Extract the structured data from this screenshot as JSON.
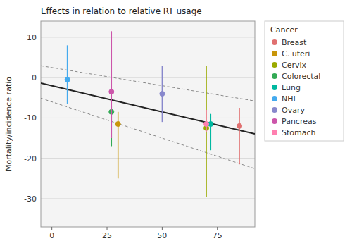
{
  "chart_data": {
    "type": "scatter",
    "title": "Effects in relation to relative RT usage",
    "y_label": "Mortality/incidence ratio",
    "legend_title": "Cancer",
    "xlim": [
      -5,
      92
    ],
    "ylim": [
      -37,
      14
    ],
    "xticks": [
      0,
      25,
      50,
      75
    ],
    "yticks": [
      -30,
      -20,
      -10,
      0,
      10
    ],
    "grid": true,
    "legend": "right",
    "series": [
      {
        "type": "line",
        "color": "#888888",
        "line_style": "dashed",
        "x": [
          -5,
          92
        ],
        "values": [
          2.95,
          -5.78
        ]
      },
      {
        "type": "line",
        "color": "#888888",
        "line_style": "dashed",
        "x": [
          -5,
          92
        ],
        "values": [
          -5.1,
          -22.56
        ]
      },
      {
        "type": "line",
        "color": "#222222",
        "line_style": "solid",
        "x": [
          -5,
          92
        ],
        "values": [
          -1.35,
          -13.96
        ]
      },
      {
        "name": "Breast",
        "color": "#e07070",
        "marker": "circle",
        "x": [
          85
        ],
        "values": [
          -12.0
        ],
        "yerr_low": [
          9.5
        ],
        "yerr_high": [
          4.5
        ]
      },
      {
        "name": "C. uteri",
        "color": "#c8960a",
        "marker": "circle",
        "x": [
          30
        ],
        "values": [
          -11.5
        ],
        "yerr_low": [
          13.5
        ],
        "yerr_high": [
          3.0
        ]
      },
      {
        "name": "Cervix",
        "color": "#9aaa00",
        "marker": "circle",
        "x": [
          70
        ],
        "values": [
          -12.5
        ],
        "yerr_low": [
          17.0
        ],
        "yerr_high": [
          15.5
        ]
      },
      {
        "name": "Colorectal",
        "color": "#33aa55",
        "marker": "circle",
        "x": [
          27
        ],
        "values": [
          -8.5
        ],
        "yerr_low": [
          8.5
        ],
        "yerr_high": [
          1.5
        ]
      },
      {
        "name": "Lung",
        "color": "#00b8a0",
        "marker": "circle",
        "x": [
          72
        ],
        "values": [
          -11.5
        ],
        "yerr_low": [
          6.5
        ],
        "yerr_high": [
          2.5
        ]
      },
      {
        "name": "NHL",
        "color": "#44aaee",
        "marker": "circle",
        "x": [
          7
        ],
        "values": [
          -0.5
        ],
        "yerr_low": [
          6.0
        ],
        "yerr_high": [
          8.5
        ]
      },
      {
        "name": "Ovary",
        "color": "#8888cc",
        "marker": "circle",
        "x": [
          50
        ],
        "values": [
          -4.0
        ],
        "yerr_low": [
          7.0
        ],
        "yerr_high": [
          7.0
        ]
      },
      {
        "name": "Pancreas",
        "color": "#cc55aa",
        "marker": "circle",
        "x": [
          27
        ],
        "values": [
          -3.5
        ],
        "yerr_low": [
          11.5
        ],
        "yerr_high": [
          15.0
        ]
      },
      {
        "name": "Stomach",
        "color": "#ff80b0",
        "marker": "circle",
        "x": [
          70
        ],
        "values": [
          -11.5
        ],
        "yerr_low": [
          2.0
        ],
        "yerr_high": [
          3.5
        ]
      }
    ]
  }
}
